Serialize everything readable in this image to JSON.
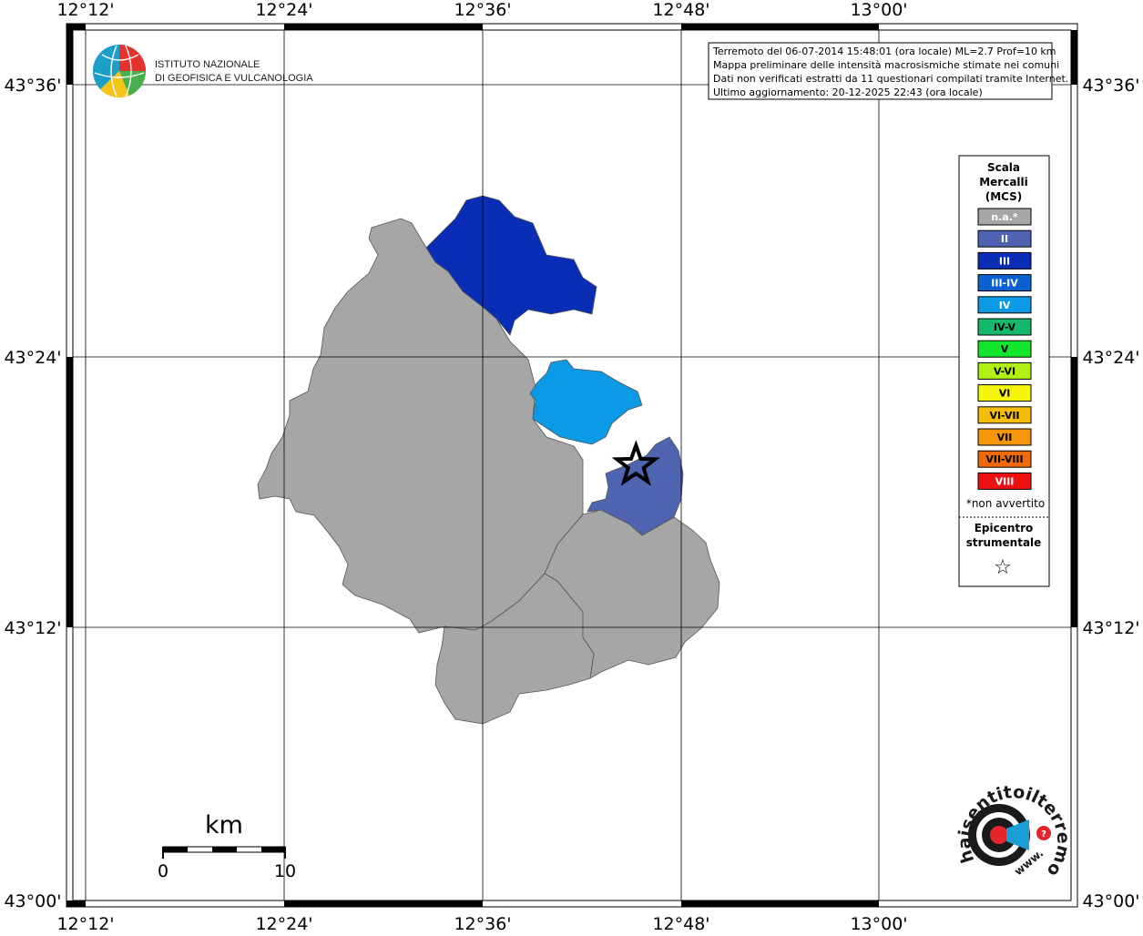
{
  "map": {
    "lon_ticks": [
      "12°12'",
      "12°24'",
      "12°36'",
      "12°48'",
      "13°00'"
    ],
    "lat_ticks": [
      "43°36'",
      "43°24'",
      "43°12'",
      "43°00'"
    ],
    "lon_range_deg": [
      12.2,
      13.2
    ],
    "lat_range_deg": [
      43.0,
      43.666
    ],
    "colors": {
      "na": "#a6a6a6",
      "II": "#4f64b0",
      "III": "#0a2db5",
      "IV": "#0a9ae6"
    },
    "epicenter": {
      "lon": 12.755,
      "lat": 43.32
    }
  },
  "info_box": {
    "lines": [
      "Terremoto del 06-07-2014 15:48:01 (ora locale) ML=2.7 Prof=10 km",
      "Mappa preliminare delle intensità macrosismiche stimate nei comuni",
      "Dati non verificati estratti da 11 questionari compilati tramite Internet.",
      "Ultimo aggiornamento: 20-12-2025 22:43 (ora locale)"
    ]
  },
  "logo_ingv": {
    "line1": "ISTITUTO NAZIONALE",
    "line2": "DI GEOFISICA E VULCANOLOGIA"
  },
  "legend": {
    "title_lines": [
      "Scala",
      "Mercalli",
      "(MCS)"
    ],
    "classes": [
      {
        "label": "n.a.*",
        "color": "#a6a6a6",
        "text": "#ffffff"
      },
      {
        "label": "II",
        "color": "#4f64b0",
        "text": "#ffffff"
      },
      {
        "label": "III",
        "color": "#0a2db5",
        "text": "#ffffff"
      },
      {
        "label": "III-IV",
        "color": "#0a62d2",
        "text": "#ffffff"
      },
      {
        "label": "IV",
        "color": "#0a9ae6",
        "text": "#ffffff"
      },
      {
        "label": "IV-V",
        "color": "#13b86a",
        "text": "#000000"
      },
      {
        "label": "V",
        "color": "#12e62a",
        "text": "#000000"
      },
      {
        "label": "V-VI",
        "color": "#b0f013",
        "text": "#000000"
      },
      {
        "label": "VI",
        "color": "#f6f60a",
        "text": "#000000"
      },
      {
        "label": "VI-VII",
        "color": "#f6be0a",
        "text": "#000000"
      },
      {
        "label": "VII",
        "color": "#f6960a",
        "text": "#000000"
      },
      {
        "label": "VII-VIII",
        "color": "#f06a0a",
        "text": "#000000"
      },
      {
        "label": "VIII",
        "color": "#ee1010",
        "text": "#ffffff"
      }
    ],
    "note": "*non avvertito",
    "epicenter_lines": [
      "Epicentro",
      "strumentale"
    ],
    "epicenter_symbol": "☆"
  },
  "scale_bar": {
    "unit": "km",
    "min_label": "0",
    "max_label": "10"
  },
  "logo_hsit": {
    "text": "haisentitoilterremoto.it",
    "prefix": "www."
  }
}
